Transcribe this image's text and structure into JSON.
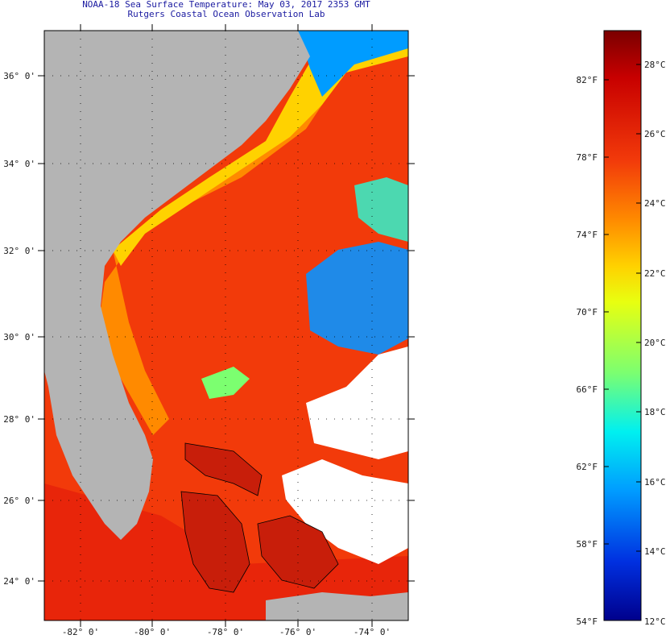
{
  "title": {
    "line1": "NOAA-18 Sea Surface Temperature:  May 03, 2017 2353 GMT",
    "line2": "Rutgers Coastal Ocean Observation Lab"
  },
  "map": {
    "lat_labels": [
      "36° 0'",
      "34° 0'",
      "32° 0'",
      "30° 0'",
      "28° 0'",
      "26° 0'",
      "24° 0'"
    ],
    "lon_labels": [
      "-82° 0'",
      "-80° 0'",
      "-78° 0'",
      "-76° 0'",
      "-74° 0'"
    ],
    "colors": {
      "land": "#b4b4b4",
      "ocean": "#f23a0a",
      "cloud": "#ffffff",
      "frame": "#000000"
    }
  },
  "colorbar": {
    "f_labels": [
      "82°F",
      "78°F",
      "74°F",
      "70°F",
      "66°F",
      "62°F",
      "58°F"
    ],
    "f_min": "54°F",
    "c_labels": [
      "28°C",
      "26°C",
      "24°C",
      "22°C",
      "20°C",
      "18°C",
      "16°C",
      "14°C"
    ],
    "c_min": "12°C",
    "gradient": [
      "#7a0000",
      "#c80000",
      "#f23a0a",
      "#ff8a00",
      "#ffd200",
      "#e8ff10",
      "#7cff70",
      "#00f0f0",
      "#009cff",
      "#0030e0",
      "#00008c"
    ]
  }
}
